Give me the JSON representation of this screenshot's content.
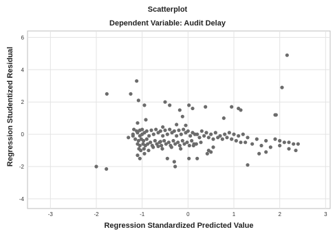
{
  "chart_data": {
    "type": "scatter",
    "title": "Scatterplot",
    "subtitle": "Dependent Variable: Audit Delay",
    "xlabel": "Regression Standardized Predicted Value",
    "ylabel": "Regression Studentized Residual",
    "xlim": [
      -3.5,
      3.1
    ],
    "ylim": [
      -4.6,
      6.4
    ],
    "xticks": [
      -3,
      -2,
      -1,
      0,
      1,
      2,
      3
    ],
    "yticks": [
      -4,
      -2,
      0,
      2,
      4,
      6
    ],
    "xtick_labels": [
      "-3",
      "-2",
      "-1",
      "0",
      "1",
      "2",
      "3"
    ],
    "ytick_labels": [
      "-4",
      "-2",
      "0",
      "2",
      "4",
      "6"
    ],
    "grid": true,
    "point_color": "#6b6b6b",
    "series": [
      {
        "x": [
          -2.0,
          -1.78,
          -1.77,
          -1.25,
          -1.12,
          -1.08,
          -0.95,
          -0.5,
          -0.4,
          0.02,
          0.38,
          0.95,
          1.1,
          1.15,
          -0.18,
          0.1,
          0.78,
          1.9,
          2.05,
          2.16,
          1.92,
          -0.12,
          -1.18,
          -1.12,
          -1.05,
          -1.0,
          -0.9,
          -0.8,
          -0.7,
          -0.6,
          -0.5,
          -0.4,
          -0.3,
          -0.2,
          -0.1,
          0.0,
          0.1,
          0.2,
          0.3,
          0.4,
          0.5,
          0.6,
          0.7,
          0.8,
          0.9,
          1.0,
          1.1,
          1.2,
          1.3,
          1.5,
          1.7,
          1.9,
          2.0,
          2.1,
          2.2,
          2.3,
          2.4,
          -1.2,
          -1.1,
          -1.05,
          -1.0,
          -0.95,
          -0.85,
          -0.75,
          -0.65,
          -0.55,
          -0.45,
          -0.35,
          -0.25,
          -0.15,
          -0.05,
          0.05,
          0.15,
          0.25,
          0.35,
          0.45,
          0.55,
          0.65,
          0.75,
          0.85,
          0.95,
          1.05,
          1.15,
          1.25,
          1.4,
          1.6,
          1.8,
          2.0,
          2.2,
          2.35,
          -1.15,
          -1.08,
          -1.02,
          -0.97,
          -0.9,
          -0.82,
          -0.72,
          -0.62,
          -0.52,
          -0.42,
          -0.32,
          -0.22,
          -0.12,
          -0.02,
          0.08,
          0.18,
          0.28,
          -1.1,
          -1.05,
          -0.98,
          -0.93,
          -0.88,
          -0.78,
          -0.68,
          -0.58,
          -0.48,
          -0.38,
          -0.28,
          -0.18,
          -0.08,
          0.03,
          0.13,
          -1.07,
          -1.03,
          -0.96,
          -0.86,
          -0.76,
          -0.56,
          -0.36,
          -0.16,
          0.45,
          0.5,
          1.3,
          1.55,
          1.7,
          -1.1,
          -1.05,
          -0.95,
          -0.45,
          -0.3,
          -0.28,
          0.02,
          0.2,
          0.42,
          -1.3,
          0.12,
          -1.1,
          -0.55,
          -0.6,
          -0.05,
          -0.92,
          0.55,
          -1.2,
          -0.25,
          -0.65
        ],
        "y": [
          -2.0,
          -2.15,
          2.5,
          2.5,
          3.3,
          2.1,
          1.8,
          2.0,
          1.8,
          1.8,
          1.7,
          1.7,
          1.6,
          1.5,
          1.5,
          1.6,
          1.0,
          1.2,
          2.9,
          4.9,
          1.2,
          1.1,
          0.3,
          0.2,
          0.25,
          0.3,
          0.2,
          0.25,
          0.3,
          0.2,
          0.25,
          0.3,
          0.2,
          0.25,
          0.3,
          0.2,
          0.1,
          0.0,
          0.2,
          0.1,
          0.0,
          0.1,
          -0.1,
          0.0,
          0.1,
          0.0,
          -0.1,
          0.0,
          -0.2,
          -0.3,
          -0.4,
          -0.3,
          -0.4,
          -0.5,
          -0.5,
          -0.6,
          -0.6,
          0.0,
          0.1,
          -0.1,
          0.0,
          0.1,
          -0.1,
          0.0,
          0.1,
          -0.1,
          0.0,
          0.1,
          -0.1,
          0.0,
          0.1,
          -0.1,
          0.0,
          -0.2,
          -0.1,
          -0.2,
          -0.3,
          -0.2,
          -0.3,
          -0.2,
          -0.3,
          -0.4,
          -0.5,
          -0.5,
          -0.6,
          -0.7,
          -0.8,
          -0.7,
          -0.9,
          -1.0,
          -0.3,
          -0.4,
          -0.3,
          -0.4,
          -0.3,
          -0.5,
          -0.4,
          -0.5,
          -0.4,
          -0.5,
          -0.4,
          -0.5,
          -0.4,
          -0.5,
          -0.4,
          -0.6,
          -0.5,
          -0.6,
          -0.7,
          -0.6,
          -0.7,
          -0.6,
          -0.7,
          -0.6,
          -0.7,
          -0.6,
          -0.7,
          -0.6,
          -0.7,
          -0.6,
          -0.7,
          -0.6,
          -0.9,
          -1.0,
          -0.9,
          -1.0,
          -0.8,
          -0.9,
          -0.8,
          -0.9,
          -1.0,
          -1.1,
          -1.9,
          -1.2,
          -1.1,
          -1.3,
          -1.5,
          -1.2,
          -1.5,
          -1.7,
          -2.0,
          -1.5,
          -1.5,
          -1.2,
          -0.2,
          -0.7,
          0.7,
          0.45,
          -0.45,
          0.55,
          0.9,
          -0.8,
          -0.1,
          0.6,
          -0.75
        ]
      }
    ]
  }
}
